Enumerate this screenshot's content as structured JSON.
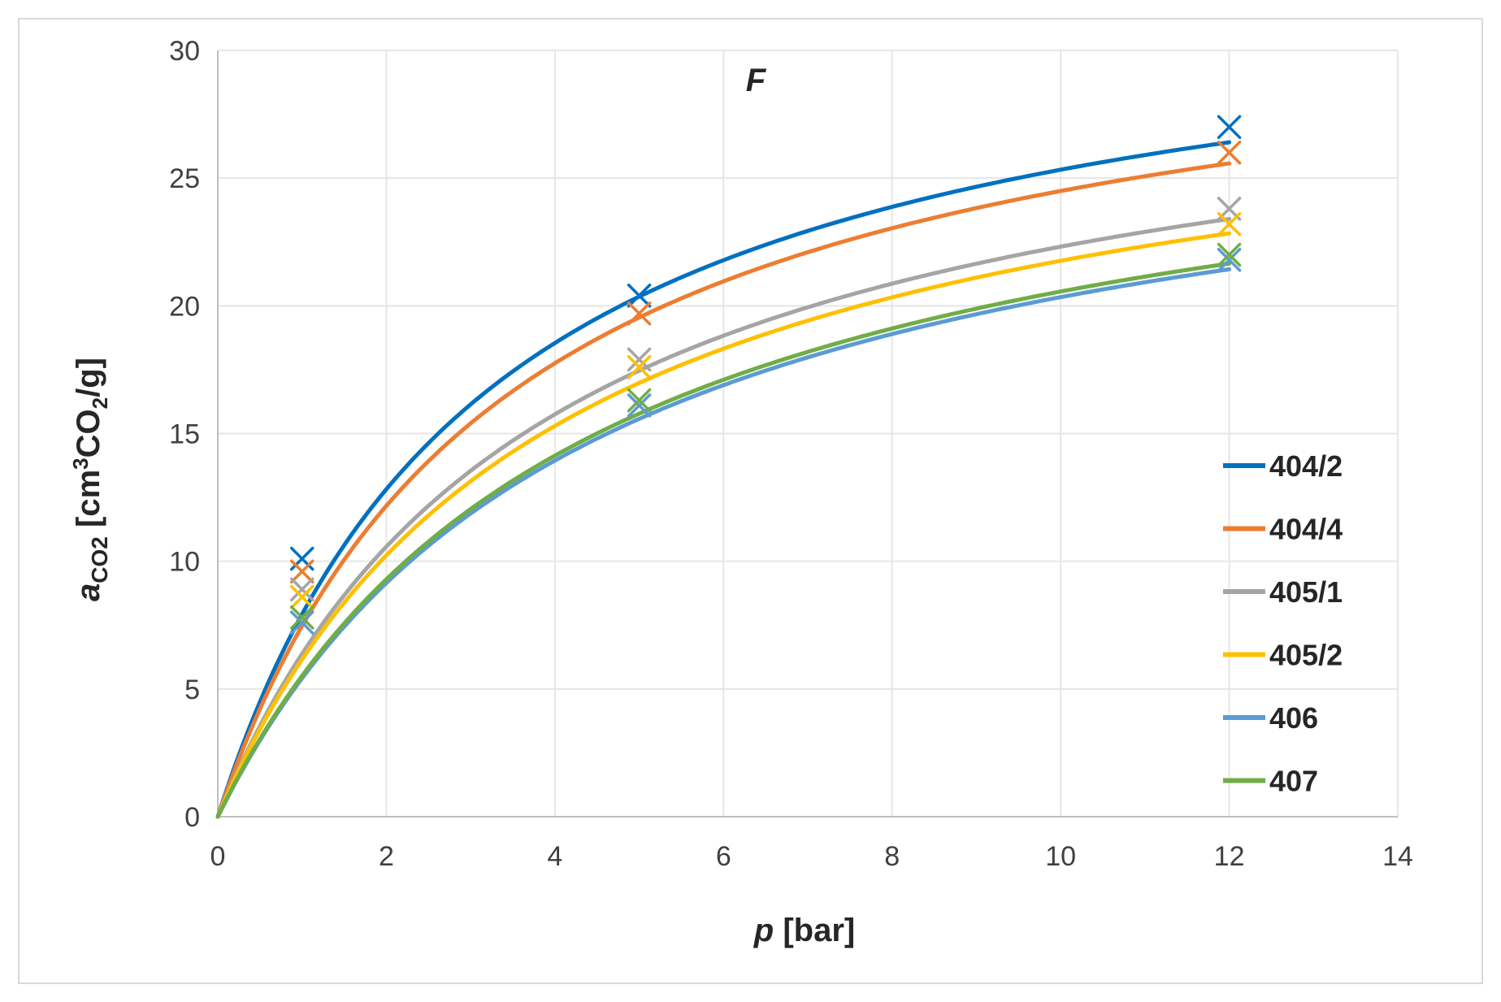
{
  "chart_data": {
    "type": "scatter",
    "title": "F",
    "xlabel": {
      "var": "p",
      "unit": "[bar]"
    },
    "ylabel": {
      "var": "a",
      "sub": "CO2",
      "unit_pre": "[cm",
      "sup": "3",
      "unit_mid": "CO",
      "sub2": "2",
      "unit_post": "/g]"
    },
    "xlim": [
      0,
      14
    ],
    "ylim": [
      0,
      30
    ],
    "xticks": [
      0,
      2,
      4,
      6,
      8,
      10,
      12,
      14
    ],
    "yticks": [
      0,
      5,
      10,
      15,
      20,
      25,
      30
    ],
    "grid": true,
    "legend_position": "right",
    "series": [
      {
        "name": "404/2",
        "color": "#0070C0",
        "markers": [
          [
            1,
            10.1
          ],
          [
            5,
            20.4
          ],
          [
            12,
            27.0
          ]
        ],
        "fit": {
          "qmax": 33.5,
          "b": 0.31
        }
      },
      {
        "name": "404/4",
        "color": "#ED7D31",
        "markers": [
          [
            1,
            9.6
          ],
          [
            5,
            19.7
          ],
          [
            12,
            26.0
          ]
        ],
        "fit": {
          "qmax": 32.8,
          "b": 0.295
        }
      },
      {
        "name": "405/1",
        "color": "#A5A5A5",
        "markers": [
          [
            1,
            8.9
          ],
          [
            5,
            17.9
          ],
          [
            12,
            23.8
          ]
        ],
        "fit": {
          "qmax": 30.9,
          "b": 0.26
        }
      },
      {
        "name": "405/2",
        "color": "#FFC000",
        "markers": [
          [
            1,
            8.6
          ],
          [
            5,
            17.6
          ],
          [
            12,
            23.2
          ]
        ],
        "fit": {
          "qmax": 30.3,
          "b": 0.255
        }
      },
      {
        "name": "406",
        "color": "#5B9BD5",
        "markers": [
          [
            1,
            7.6
          ],
          [
            5,
            16.1
          ],
          [
            12,
            21.8
          ]
        ],
        "fit": {
          "qmax": 29.3,
          "b": 0.227
        }
      },
      {
        "name": "407",
        "color": "#70AD47",
        "markers": [
          [
            1,
            7.8
          ],
          [
            5,
            16.3
          ],
          [
            12,
            22.0
          ]
        ],
        "fit": {
          "qmax": 29.5,
          "b": 0.23
        }
      }
    ]
  }
}
